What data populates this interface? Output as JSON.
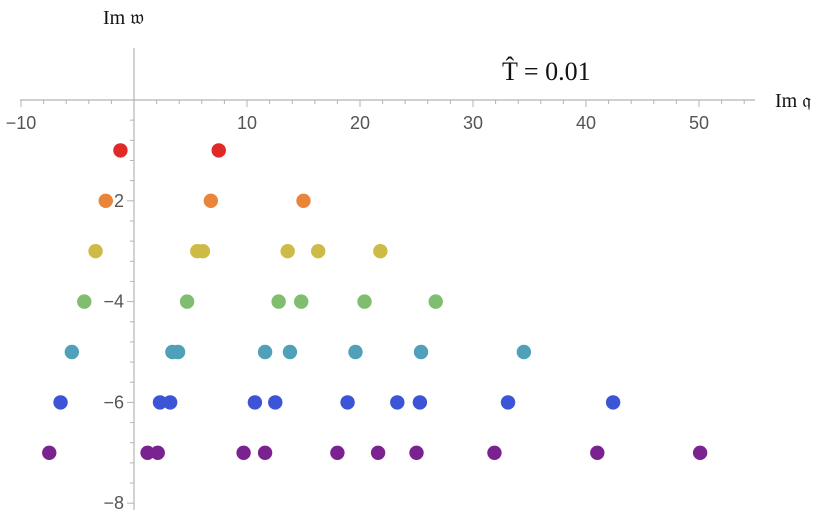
{
  "chart_data": {
    "type": "scatter",
    "xlabel": "Im 𝔮",
    "ylabel": "Im 𝔴",
    "annotation": "T̂ = 0.01",
    "xlim": [
      -10,
      55
    ],
    "ylim": [
      -8,
      1
    ],
    "x_ticks": [
      -10,
      10,
      20,
      30,
      40,
      50
    ],
    "x_tick_labels": [
      "−10",
      "10",
      "20",
      "30",
      "40",
      "50"
    ],
    "y_ticks": [
      -8,
      -6,
      -4,
      -2
    ],
    "y_tick_labels": [
      "−8",
      "−6",
      "−4",
      "−2"
    ],
    "grid": false,
    "series": [
      {
        "color": "#e02a27",
        "points": [
          [
            -1.2,
            -1
          ],
          [
            7.5,
            -1
          ]
        ]
      },
      {
        "color": "#e8853a",
        "points": [
          [
            -2.5,
            -2
          ],
          [
            6.8,
            -2
          ],
          [
            15.0,
            -2
          ]
        ]
      },
      {
        "color": "#cdbb45",
        "points": [
          [
            -3.4,
            -3
          ],
          [
            5.6,
            -3
          ],
          [
            6.1,
            -3
          ],
          [
            13.6,
            -3
          ],
          [
            16.3,
            -3
          ],
          [
            21.8,
            -3
          ]
        ]
      },
      {
        "color": "#7fbe6e",
        "points": [
          [
            -4.4,
            -4
          ],
          [
            4.7,
            -4
          ],
          [
            12.8,
            -4
          ],
          [
            14.8,
            -4
          ],
          [
            20.4,
            -4
          ],
          [
            26.7,
            -4
          ]
        ]
      },
      {
        "color": "#4fa0b8",
        "points": [
          [
            -5.5,
            -5
          ],
          [
            3.4,
            -5
          ],
          [
            3.9,
            -5
          ],
          [
            11.6,
            -5
          ],
          [
            13.8,
            -5
          ],
          [
            19.6,
            -5
          ],
          [
            25.4,
            -5
          ],
          [
            34.5,
            -5
          ]
        ]
      },
      {
        "color": "#3b55d6",
        "points": [
          [
            -6.5,
            -6
          ],
          [
            2.3,
            -6
          ],
          [
            3.2,
            -6
          ],
          [
            10.7,
            -6
          ],
          [
            12.5,
            -6
          ],
          [
            18.9,
            -6
          ],
          [
            23.3,
            -6
          ],
          [
            25.3,
            -6
          ],
          [
            33.1,
            -6
          ],
          [
            42.4,
            -6
          ]
        ]
      },
      {
        "color": "#7a2290",
        "points": [
          [
            -7.5,
            -7
          ],
          [
            1.2,
            -7
          ],
          [
            2.1,
            -7
          ],
          [
            9.7,
            -7
          ],
          [
            11.6,
            -7
          ],
          [
            18.0,
            -7
          ],
          [
            21.6,
            -7
          ],
          [
            25.0,
            -7
          ],
          [
            31.9,
            -7
          ],
          [
            41.0,
            -7
          ],
          [
            50.1,
            -7
          ]
        ]
      }
    ]
  }
}
